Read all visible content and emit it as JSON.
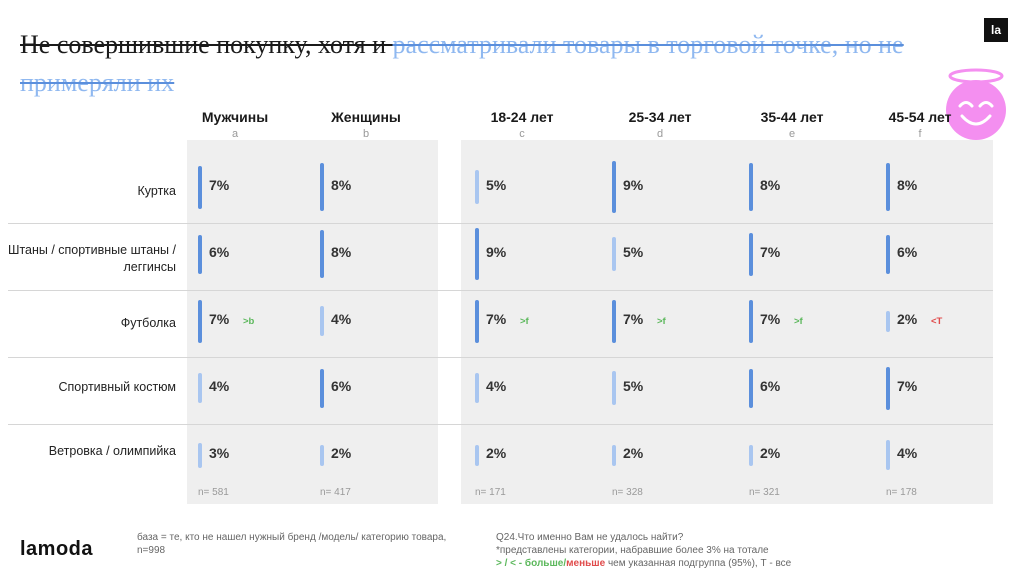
{
  "title": {
    "part1": "Не совершившие покупку, хотя и ",
    "part2": "рассматривали товары в торговой точке, но не примеряли их"
  },
  "badge": "la",
  "columns": [
    {
      "label": "Мужчины",
      "letter": "a",
      "n": "n= 581"
    },
    {
      "label": "Женщины",
      "letter": "b",
      "n": "n= 417"
    },
    {
      "label": "18-24 лет",
      "letter": "c",
      "n": "n= 171"
    },
    {
      "label": "25-34 лет",
      "letter": "d",
      "n": "n= 328"
    },
    {
      "label": "35-44 лет",
      "letter": "e",
      "n": "n= 321"
    },
    {
      "label": "45-54 лет",
      "letter": "f",
      "n": "n= 178"
    }
  ],
  "rows": [
    {
      "label": "Куртка",
      "cells": [
        {
          "v": "7%",
          "p": 7,
          "sig": ""
        },
        {
          "v": "8%",
          "p": 8,
          "sig": ""
        },
        {
          "v": "5%",
          "p": 5,
          "sig": ""
        },
        {
          "v": "9%",
          "p": 9,
          "sig": ""
        },
        {
          "v": "8%",
          "p": 8,
          "sig": ""
        },
        {
          "v": "8%",
          "p": 8,
          "sig": ""
        }
      ]
    },
    {
      "label": "Штаны / спортивные штаны / леггинсы",
      "cells": [
        {
          "v": "6%",
          "p": 6,
          "sig": ""
        },
        {
          "v": "8%",
          "p": 8,
          "sig": ""
        },
        {
          "v": "9%",
          "p": 9,
          "sig": ""
        },
        {
          "v": "5%",
          "p": 5,
          "sig": ""
        },
        {
          "v": "7%",
          "p": 7,
          "sig": ""
        },
        {
          "v": "6%",
          "p": 6,
          "sig": ""
        }
      ]
    },
    {
      "label": "Футболка",
      "cells": [
        {
          "v": "7%",
          "p": 7,
          "sig": ">b"
        },
        {
          "v": "4%",
          "p": 4,
          "sig": ""
        },
        {
          "v": "7%",
          "p": 7,
          "sig": ">f"
        },
        {
          "v": "7%",
          "p": 7,
          "sig": ">f"
        },
        {
          "v": "7%",
          "p": 7,
          "sig": ">f"
        },
        {
          "v": "2%",
          "p": 2,
          "sig": "<T"
        }
      ]
    },
    {
      "label": "Спортивный костюм",
      "cells": [
        {
          "v": "4%",
          "p": 4,
          "sig": ""
        },
        {
          "v": "6%",
          "p": 6,
          "sig": ""
        },
        {
          "v": "4%",
          "p": 4,
          "sig": ""
        },
        {
          "v": "5%",
          "p": 5,
          "sig": ""
        },
        {
          "v": "6%",
          "p": 6,
          "sig": ""
        },
        {
          "v": "7%",
          "p": 7,
          "sig": ""
        }
      ]
    },
    {
      "label": "Ветровка / олимпийка",
      "cells": [
        {
          "v": "3%",
          "p": 3,
          "sig": ""
        },
        {
          "v": "2%",
          "p": 2,
          "sig": ""
        },
        {
          "v": "2%",
          "p": 2,
          "sig": ""
        },
        {
          "v": "2%",
          "p": 2,
          "sig": ""
        },
        {
          "v": "2%",
          "p": 2,
          "sig": ""
        },
        {
          "v": "4%",
          "p": 4,
          "sig": ""
        }
      ]
    }
  ],
  "footer": {
    "logo": "lamoda",
    "base": "база = те, кто не нашел нужный бренд /модель/ категорию товара, n=998",
    "question": "Q24.Что именно Вам не удалось найти?",
    "note": "*представлены категории, набравшие более 3% на тотале",
    "legend_sig": "> / < - больше/",
    "legend_less": "меньше",
    "legend_rest": " чем указанная подгруппа (95%), Т - все"
  },
  "colors": {
    "bar_strong": "#5b8fdc",
    "bar_light": "#a9c6f0",
    "sig_more": "#5cb85c",
    "sig_less": "#e04b4b",
    "angel": "#f48ff0"
  }
}
